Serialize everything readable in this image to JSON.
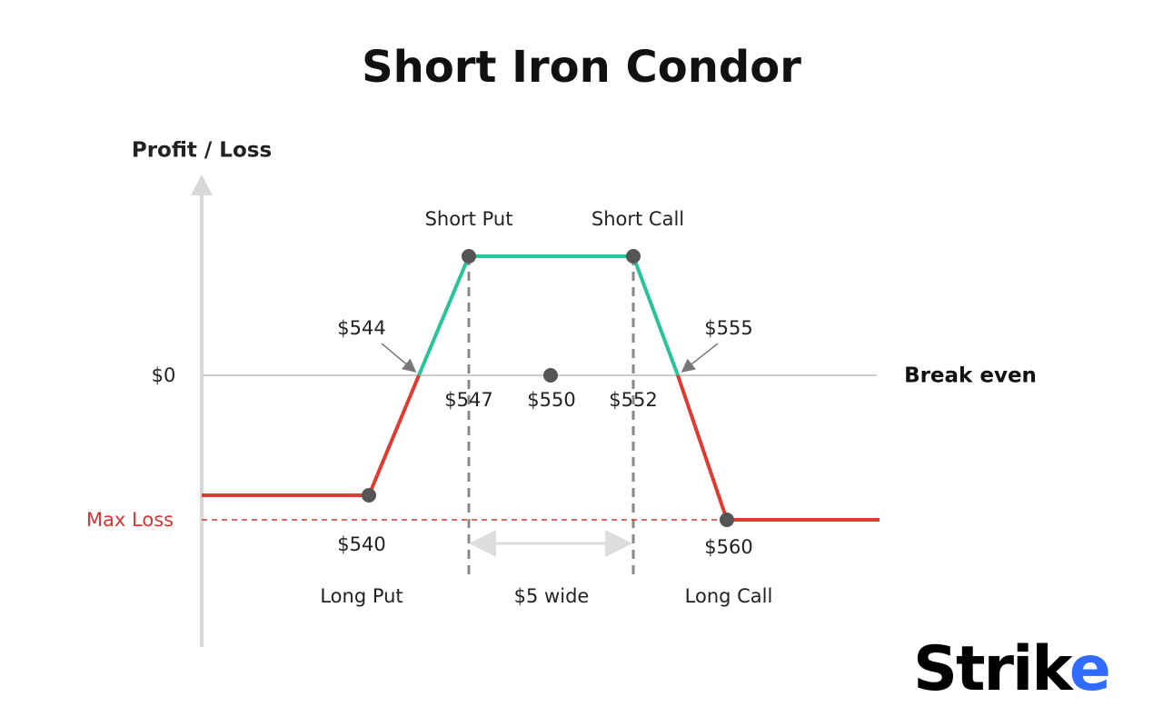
{
  "title": "Short Iron Condor",
  "axis": {
    "y_label": "Profit / Loss",
    "zero": "$0",
    "zero_line": "Break even",
    "max_loss": "Max Loss"
  },
  "labels": {
    "short_put": "Short Put",
    "short_call": "Short Call",
    "long_put": "Long Put",
    "long_call": "Long Call",
    "width": "$5 wide"
  },
  "prices": {
    "lower_break_even": "$544",
    "upper_break_even": "$555",
    "short_put": "$547",
    "center": "$550",
    "short_call": "$552",
    "long_put": "$540",
    "long_call": "$560"
  },
  "logo": {
    "text": "Strik",
    "accent": "e"
  }
}
